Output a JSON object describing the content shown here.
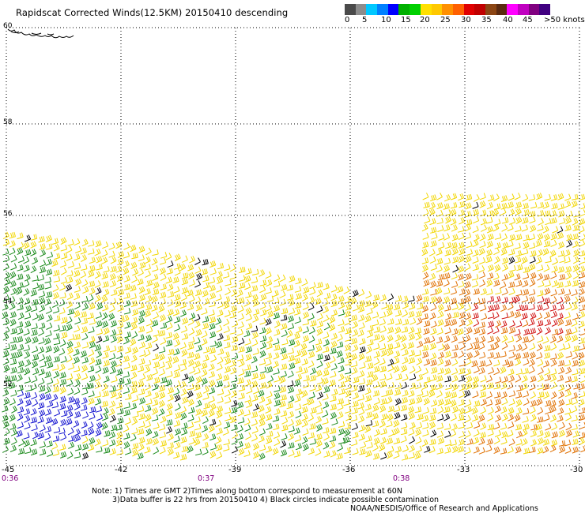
{
  "title": "Rapidscat Corrected Winds(12.5KM) 20150410 descending",
  "legend": {
    "colors": [
      "#4a4a4a",
      "#8c8c8c",
      "#00c8ff",
      "#0080ff",
      "#0000ff",
      "#00b000",
      "#00d000",
      "#ffe000",
      "#ffc800",
      "#ff9000",
      "#ff6000",
      "#e00000",
      "#c00000",
      "#8b4513",
      "#5a2a10",
      "#ff00ff",
      "#c000c0",
      "#800080",
      "#400080"
    ],
    "labels": [
      "0",
      "5",
      "10",
      "15",
      "20",
      "25",
      "30",
      "35",
      "40",
      "45",
      ">50 knots"
    ]
  },
  "axes": {
    "lon_labels": [
      "-45",
      "-42",
      "-39",
      "-36",
      "-33",
      "-30"
    ],
    "lat_labels": [
      "60",
      "58",
      "56",
      "54",
      "52"
    ],
    "time_labels": [
      "0:36",
      "0:37",
      "0:38"
    ]
  },
  "notes": {
    "line1": "Note: 1) Times are GMT 2)Times along bottom correspond to measurement at 60N",
    "line2": "3)Data buffer is 22 hrs from 20150410 4) Black circles indicate possible contamination",
    "credit": "NOAA/NESDIS/Office of Research and Applications"
  },
  "colors": {
    "grid": "#000000",
    "calm_green": "#1a8a1a",
    "moderate_yellow": "#f2d600",
    "strong_orange": "#e07000",
    "gale_red": "#d01010",
    "blue": "#1010d0",
    "contamination_black": "#000000"
  }
}
